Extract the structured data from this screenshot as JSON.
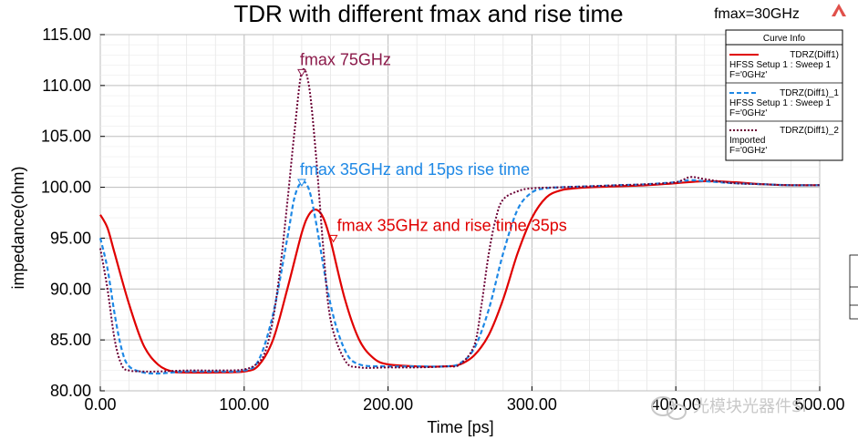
{
  "chart_data": {
    "type": "line",
    "title": "TDR with different fmax and rise time",
    "xlabel": "Time [ps]",
    "ylabel": "impedance(ohm)",
    "xlim": [
      0,
      500
    ],
    "ylim": [
      80,
      115
    ],
    "xticks": [
      "0.00",
      "100.00",
      "200.00",
      "300.00",
      "400.00",
      "500.00"
    ],
    "yticks": [
      "80.00",
      "85.00",
      "90.00",
      "95.00",
      "100.00",
      "105.00",
      "110.00",
      "115.00"
    ],
    "grid": true,
    "top_right_label": "fmax=30GHz",
    "legend": {
      "title": "Curve Info",
      "placement": "top-right",
      "entries": [
        {
          "lines": [
            "TDRZ(Diff1)",
            "HFSS Setup 1 : Sweep 1",
            "F='0GHz'"
          ],
          "color": "#e00000",
          "style": "solid"
        },
        {
          "lines": [
            "TDRZ(Diff1)_1",
            "HFSS Setup 1 : Sweep 1",
            "F='0GHz'"
          ],
          "color": "#1e88e5",
          "style": "dashed"
        },
        {
          "lines": [
            "TDRZ(Diff1)_2",
            "Imported",
            "F='0GHz'"
          ],
          "color": "#6b0035",
          "style": "dotted"
        }
      ]
    },
    "annotations": [
      {
        "text": "fmax 75GHz",
        "color": "#8b1a4a",
        "x": 140,
        "y": 111.3
      },
      {
        "text": "fmax 35GHz and 15ps rise time",
        "color": "#1e88e5",
        "x": 140,
        "y": 100.5
      },
      {
        "text": "fmax 35GHz and rise time 35ps",
        "color": "#e00000",
        "x": 162,
        "y": 95.0
      }
    ],
    "series": [
      {
        "name": "TDRZ(Diff1)",
        "color": "#e00000",
        "style": "solid",
        "x": [
          0,
          5,
          10,
          20,
          30,
          40,
          50,
          60,
          80,
          100,
          110,
          120,
          130,
          140,
          145,
          150,
          155,
          160,
          170,
          180,
          190,
          200,
          220,
          240,
          250,
          260,
          270,
          280,
          290,
          300,
          310,
          320,
          330,
          340,
          360,
          380,
          400,
          420,
          440,
          460,
          480,
          500
        ],
        "y": [
          97.3,
          96.0,
          93.5,
          88.5,
          84.5,
          82.6,
          81.9,
          81.8,
          81.8,
          81.9,
          82.5,
          85.0,
          90.0,
          95.5,
          97.3,
          97.8,
          97.0,
          94.8,
          89.0,
          85.0,
          83.2,
          82.6,
          82.4,
          82.4,
          82.6,
          83.5,
          85.5,
          89.0,
          93.5,
          97.0,
          99.0,
          99.7,
          99.9,
          100.0,
          100.1,
          100.2,
          100.4,
          100.6,
          100.5,
          100.3,
          100.2,
          100.2
        ]
      },
      {
        "name": "TDRZ(Diff1)_1",
        "color": "#1e88e5",
        "style": "dashed",
        "x": [
          0,
          5,
          10,
          15,
          20,
          30,
          40,
          50,
          60,
          80,
          100,
          110,
          120,
          130,
          135,
          140,
          145,
          150,
          160,
          170,
          180,
          200,
          220,
          240,
          250,
          260,
          270,
          280,
          290,
          300,
          310,
          320,
          340,
          360,
          380,
          400,
          410,
          420,
          440,
          460,
          480,
          500
        ],
        "y": [
          95.0,
          92.0,
          87.5,
          84.0,
          82.4,
          81.8,
          81.7,
          81.8,
          81.9,
          81.9,
          82.0,
          83.0,
          87.5,
          95.0,
          99.0,
          100.5,
          99.8,
          96.5,
          88.5,
          84.0,
          82.6,
          82.4,
          82.4,
          82.4,
          82.7,
          84.2,
          88.0,
          93.5,
          97.8,
          99.5,
          99.9,
          100.0,
          100.1,
          100.2,
          100.3,
          100.5,
          100.7,
          100.6,
          100.4,
          100.3,
          100.2,
          100.2
        ]
      },
      {
        "name": "TDRZ(Diff1)_2",
        "color": "#6b0035",
        "style": "dotted",
        "x": [
          0,
          5,
          10,
          15,
          20,
          30,
          40,
          60,
          80,
          100,
          110,
          115,
          120,
          125,
          130,
          135,
          140,
          145,
          150,
          155,
          160,
          170,
          180,
          200,
          220,
          240,
          250,
          260,
          265,
          270,
          275,
          280,
          290,
          300,
          320,
          340,
          360,
          380,
          400,
          410,
          420,
          440,
          460,
          480,
          500
        ],
        "y": [
          94.0,
          90.0,
          85.0,
          82.5,
          82.0,
          81.9,
          81.9,
          82.0,
          82.0,
          82.1,
          82.8,
          84.0,
          87.0,
          92.0,
          98.5,
          105.5,
          111.3,
          110.0,
          103.0,
          94.0,
          87.0,
          83.0,
          82.3,
          82.3,
          82.3,
          82.4,
          82.6,
          84.5,
          88.5,
          93.5,
          97.0,
          98.8,
          99.6,
          99.9,
          100.0,
          100.1,
          100.2,
          100.3,
          100.5,
          101.0,
          100.8,
          100.4,
          100.3,
          100.2,
          100.2
        ]
      }
    ]
  },
  "watermark": "光模块光器件SI",
  "watermark_icon": "chat-bubble-icon",
  "logo_icon": "ansys-logo-icon"
}
